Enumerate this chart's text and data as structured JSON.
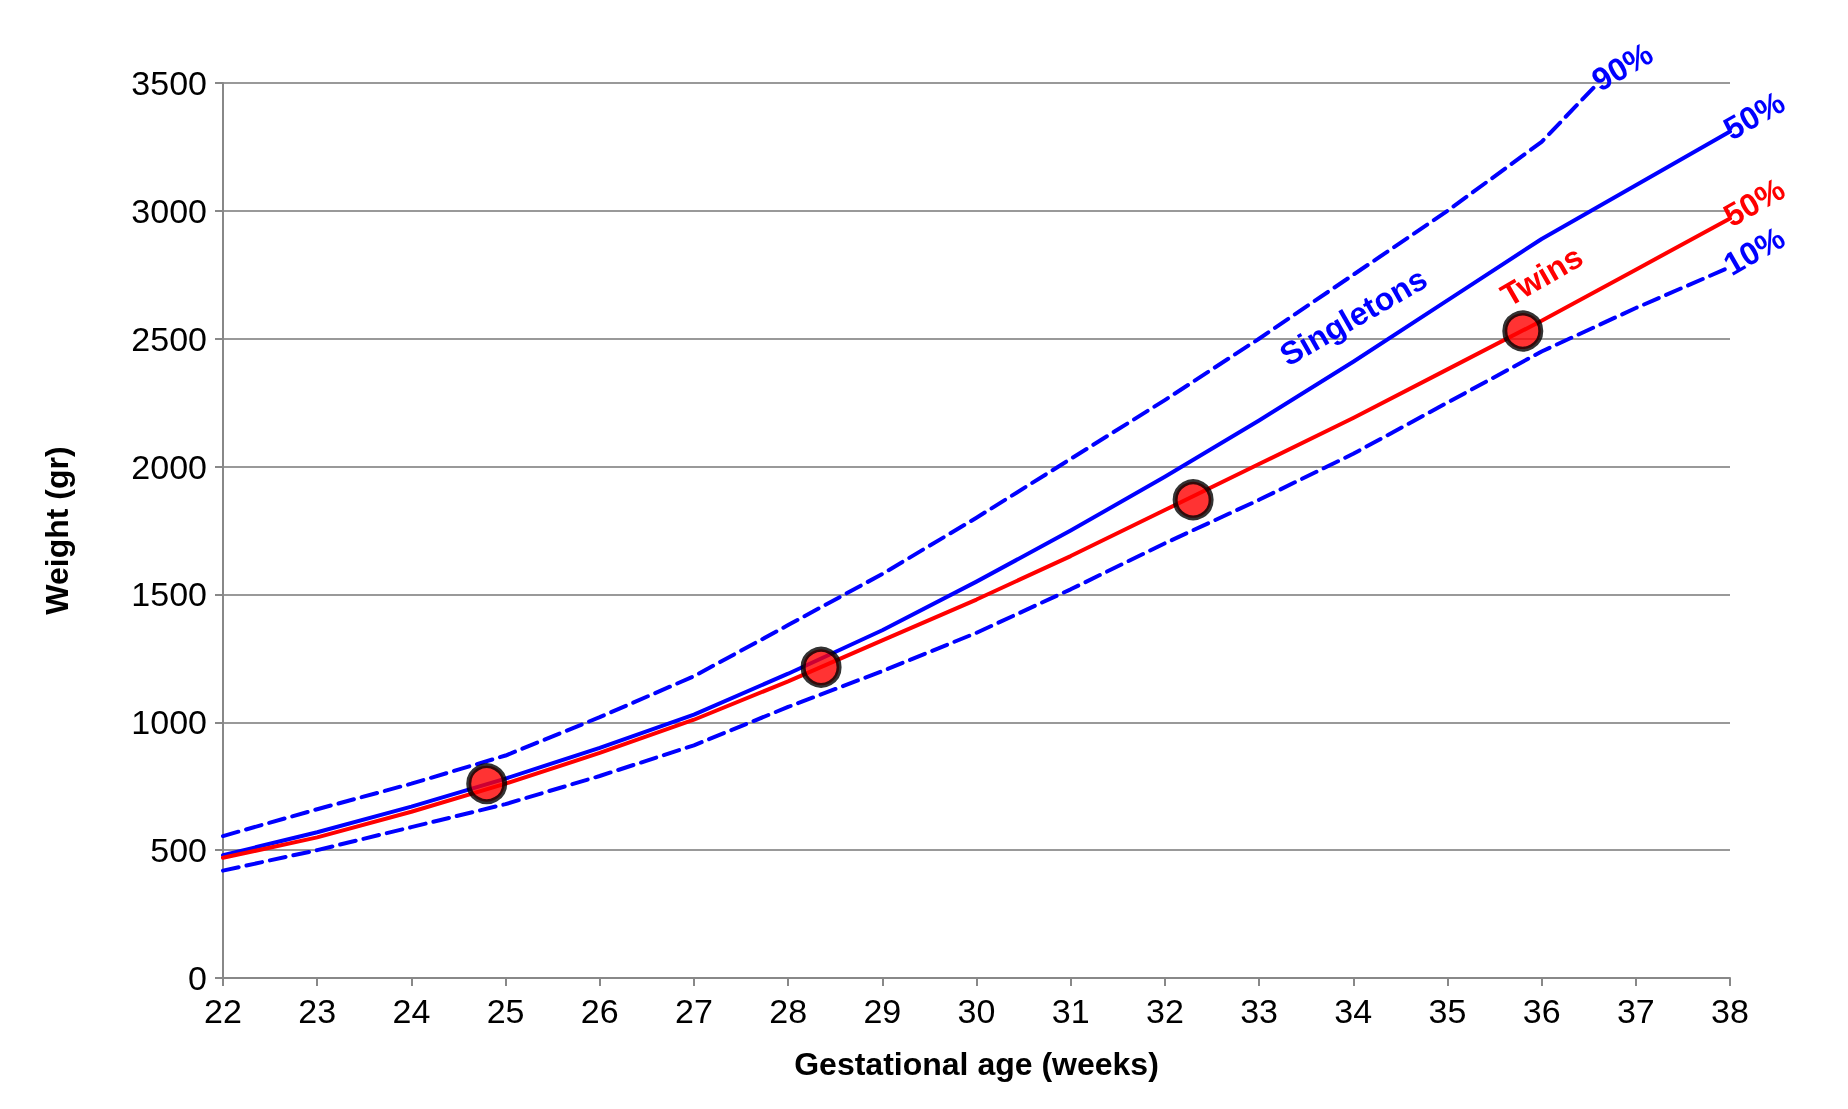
{
  "chart_data": {
    "type": "line",
    "xlabel": "Gestational age (weeks)",
    "ylabel": "Weight (gr)",
    "xlim": [
      22,
      38
    ],
    "xticks": [
      22,
      23,
      24,
      25,
      26,
      27,
      28,
      29,
      30,
      31,
      32,
      33,
      34,
      35,
      36,
      37,
      38
    ],
    "ylim": [
      0,
      3500
    ],
    "yticks": [
      0,
      500,
      1000,
      1500,
      2000,
      2500,
      3000,
      3500
    ],
    "grid": "y",
    "marker": "none",
    "series": [
      {
        "name": "90%",
        "color": "#0000ff",
        "line_style": "dashed",
        "x": [
          22,
          23,
          24,
          25,
          26,
          27,
          28,
          29,
          30,
          31,
          32,
          33,
          34,
          35,
          36,
          36.6
        ],
        "values": [
          555,
          660,
          760,
          870,
          1020,
          1180,
          1380,
          1580,
          1800,
          2030,
          2260,
          2500,
          2750,
          3000,
          3270,
          3500
        ]
      },
      {
        "name": "50%",
        "color": "#0000ff",
        "line_style": "solid",
        "x": [
          22,
          23,
          24,
          25,
          26,
          27,
          28,
          29,
          30,
          31,
          32,
          33,
          34,
          35,
          36,
          37,
          38
        ],
        "values": [
          480,
          570,
          670,
          780,
          900,
          1030,
          1190,
          1360,
          1550,
          1750,
          1960,
          2180,
          2410,
          2650,
          2890,
          3100,
          3310
        ]
      },
      {
        "name": "50%",
        "color": "#ff0000",
        "line_style": "solid",
        "x": [
          22,
          23,
          24,
          25,
          26,
          27,
          28,
          29,
          30,
          31,
          32,
          33,
          34,
          35,
          36,
          37,
          38
        ],
        "values": [
          470,
          550,
          650,
          760,
          880,
          1010,
          1160,
          1320,
          1480,
          1650,
          1830,
          2010,
          2190,
          2380,
          2570,
          2770,
          2970
        ]
      },
      {
        "name": "10%",
        "color": "#0000ff",
        "line_style": "dashed",
        "x": [
          22,
          23,
          24,
          25,
          26,
          27,
          28,
          29,
          30,
          31,
          32,
          33,
          34,
          35,
          36,
          37,
          38
        ],
        "values": [
          420,
          500,
          590,
          680,
          790,
          910,
          1060,
          1200,
          1350,
          1520,
          1700,
          1870,
          2050,
          2250,
          2450,
          2620,
          2780
        ]
      },
      {
        "type": "scatter",
        "color": "#ff0000",
        "marker": "circle",
        "x": [
          24.8,
          28.35,
          32.3,
          35.8
        ],
        "values": [
          760,
          1215,
          1870,
          2530
        ]
      }
    ],
    "annotations": [
      "Singletons",
      "Twins"
    ]
  }
}
